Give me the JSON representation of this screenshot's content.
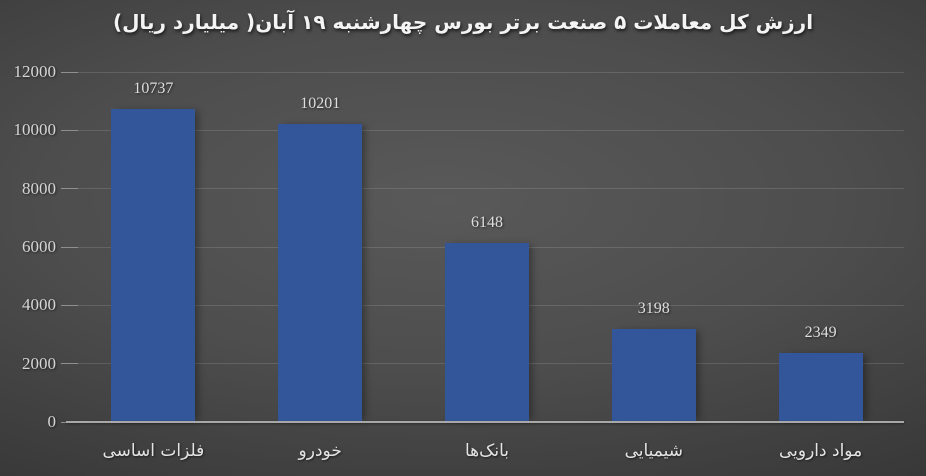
{
  "chart_data": {
    "type": "bar",
    "title": "ارزش کل معاملات ۵ صنعت برتر بورس چهارشنبه ۱۹ آبان( میلیارد ریال)",
    "categories": [
      "فلزات اساسی",
      "خودرو",
      "بانک‌ها",
      "شیمیایی",
      "مواد دارویی"
    ],
    "values": [
      10737,
      10201,
      6148,
      3198,
      2349
    ],
    "data_labels": [
      "10737",
      "10201",
      "6148",
      "3198",
      "2349"
    ],
    "y_ticks": [
      0,
      2000,
      4000,
      6000,
      8000,
      10000,
      12000
    ],
    "y_tick_labels": [
      "0",
      "2000",
      "4000",
      "6000",
      "8000",
      "10000",
      "12000"
    ],
    "ylim": [
      0,
      12000
    ],
    "xlabel": "",
    "ylabel": "",
    "grid": true,
    "legend": "none",
    "text_direction": "rtl",
    "colors": {
      "bar_fill": "#33569B",
      "background_center": "#595959",
      "background_edge": "#2c2c2c",
      "gridline": "#5f5f5f",
      "axis_line": "#a8a8a8",
      "title_text": "#f4f4f4",
      "y_tick_text": "#d6d6d6",
      "data_label_text": "#dedede",
      "category_text": "#e4e4e4"
    }
  }
}
